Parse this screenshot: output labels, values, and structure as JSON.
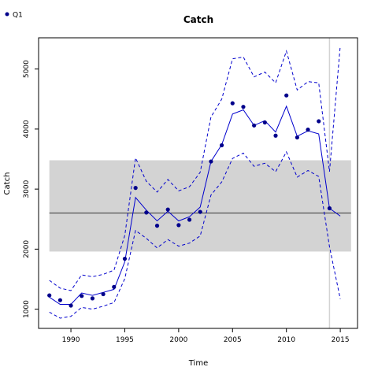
{
  "chart_data": {
    "type": "line",
    "title": "Catch",
    "xlabel": "Time",
    "ylabel": "Catch",
    "xlim": [
      1987.0,
      2016.6
    ],
    "ylim": [
      680,
      5520
    ],
    "x_ticks": [
      1990,
      1995,
      2000,
      2005,
      2010,
      2015
    ],
    "y_ticks": [
      1000,
      2000,
      3000,
      4000,
      5000
    ],
    "legend": {
      "position": "top-left",
      "entries": [
        {
          "label": "Q1",
          "color": "#00008b"
        }
      ]
    },
    "band": {
      "x_range": [
        1988,
        2016
      ],
      "y_range": [
        1960,
        3480
      ],
      "color": "#d3d3d3"
    },
    "hline": {
      "y": 2600,
      "color": "#000000"
    },
    "vline": {
      "x": 2014,
      "color": "#d3d3d3"
    },
    "series": [
      {
        "name": "Q1",
        "kind": "points",
        "color": "#00008b",
        "x": [
          1988,
          1989,
          1990,
          1991,
          1992,
          1993,
          1994,
          1995,
          1996,
          1997,
          1998,
          1999,
          2000,
          2001,
          2002,
          2003,
          2004,
          2005,
          2006,
          2007,
          2008,
          2009,
          2010,
          2011,
          2012,
          2013,
          2014
        ],
        "y": [
          1230,
          1150,
          1060,
          1220,
          1180,
          1250,
          1370,
          1840,
          3020,
          2610,
          2390,
          2660,
          2400,
          2490,
          2620,
          3460,
          3730,
          4430,
          4370,
          4060,
          4110,
          3890,
          4560,
          3860,
          3990,
          4130,
          2680
        ]
      },
      {
        "kind": "line",
        "color": "#0000cd",
        "x": [
          1988,
          1989,
          1990,
          1991,
          1992,
          1993,
          1994,
          1995,
          1996,
          1997,
          1998,
          1999,
          2000,
          2001,
          2002,
          2003,
          2004,
          2005,
          2006,
          2007,
          2008,
          2009,
          2010,
          2011,
          2012,
          2013,
          2014,
          2015
        ],
        "y": [
          1200,
          1080,
          1080,
          1270,
          1230,
          1280,
          1330,
          1790,
          2860,
          2650,
          2470,
          2630,
          2470,
          2540,
          2700,
          3460,
          3740,
          4250,
          4320,
          4060,
          4140,
          3950,
          4380,
          3880,
          3970,
          3920,
          2680,
          2550
        ]
      },
      {
        "kind": "dashed-upper",
        "color": "#0000cd",
        "x": [
          1988,
          1989,
          1990,
          1991,
          1992,
          1993,
          1994,
          1995,
          1996,
          1997,
          1998,
          1999,
          2000,
          2001,
          2002,
          2003,
          2004,
          2005,
          2006,
          2007,
          2008,
          2009,
          2010,
          2011,
          2012,
          2013,
          2014,
          2015
        ],
        "y": [
          1480,
          1350,
          1310,
          1570,
          1540,
          1580,
          1650,
          2230,
          3520,
          3130,
          2950,
          3160,
          2970,
          3040,
          3280,
          4200,
          4500,
          5170,
          5200,
          4870,
          4950,
          4770,
          5300,
          4650,
          4790,
          4770,
          3290,
          5390
        ]
      },
      {
        "kind": "dashed-lower",
        "color": "#0000cd",
        "x": [
          1988,
          1989,
          1990,
          1991,
          1992,
          1993,
          1994,
          1995,
          1996,
          1997,
          1998,
          1999,
          2000,
          2001,
          2002,
          2003,
          2004,
          2005,
          2006,
          2007,
          2008,
          2009,
          2010,
          2011,
          2012,
          2013,
          2014,
          2015
        ],
        "y": [
          950,
          850,
          880,
          1030,
          1000,
          1050,
          1110,
          1510,
          2310,
          2180,
          2020,
          2160,
          2050,
          2100,
          2220,
          2900,
          3120,
          3510,
          3600,
          3380,
          3430,
          3290,
          3620,
          3200,
          3310,
          3210,
          2040,
          1170
        ]
      }
    ]
  }
}
